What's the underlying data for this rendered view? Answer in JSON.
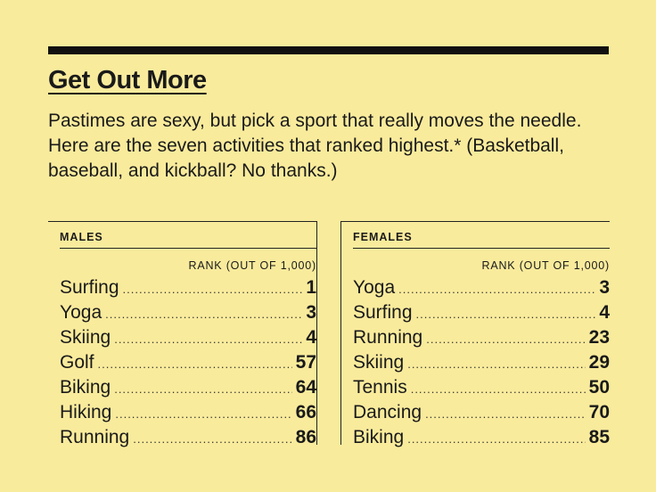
{
  "title": "Get Out More",
  "intro": "Pastimes are sexy, but pick a sport that really moves the needle. Here are the seven activities that ranked highest.* (Basketball, baseball, and kickball? No thanks.)",
  "males": {
    "heading": "MALES",
    "column_label": "RANK (OUT OF 1,000)",
    "rows": [
      {
        "activity": "Surfing",
        "rank": "1"
      },
      {
        "activity": "Yoga",
        "rank": "3"
      },
      {
        "activity": "Skiing",
        "rank": "4"
      },
      {
        "activity": "Golf",
        "rank": "57"
      },
      {
        "activity": "Biking",
        "rank": "64"
      },
      {
        "activity": "Hiking",
        "rank": "66"
      },
      {
        "activity": "Running",
        "rank": "86"
      }
    ]
  },
  "females": {
    "heading": "FEMALES",
    "column_label": "RANK (OUT OF 1,000)",
    "rows": [
      {
        "activity": "Yoga",
        "rank": "3"
      },
      {
        "activity": "Surfing",
        "rank": "4"
      },
      {
        "activity": "Running",
        "rank": "23"
      },
      {
        "activity": "Skiing",
        "rank": "29"
      },
      {
        "activity": "Tennis",
        "rank": "50"
      },
      {
        "activity": "Dancing",
        "rank": "70"
      },
      {
        "activity": "Biking",
        "rank": "85"
      }
    ]
  }
}
